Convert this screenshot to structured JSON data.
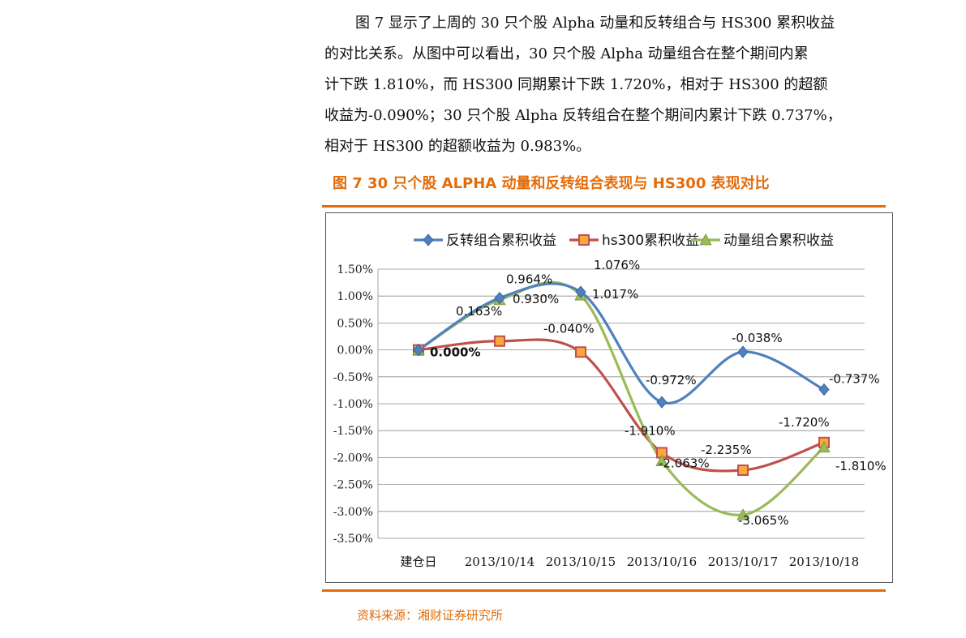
{
  "paragraph": {
    "lines": [
      "图 7 显示了上周的 30 只个股 Alpha 动量和反转组合与 HS300 累积收益",
      "的对比关系。从图中可以看出，30 只个股 Alpha 动量组合在整个期间内累",
      "计下跌 1.810%，而 HS300 同期累计下跌 1.720%，相对于 HS300 的超额",
      "收益为-0.090%；30 只个股 Alpha 反转组合在整个期间内累计下跌 0.737%，",
      "相对于 HS300 的超额收益为 0.983%。"
    ]
  },
  "figure_caption": "图 7    30 只个股 ALPHA 动量和反转组合表现与 HS300 表现对比",
  "source": {
    "label": "资料来源：",
    "text": "湘财证券研究所"
  },
  "chart_data": {
    "type": "line",
    "categories": [
      "建仓日",
      "2013/10/14",
      "2013/10/15",
      "2013/10/16",
      "2013/10/17",
      "2013/10/18"
    ],
    "ylim": [
      -3.5,
      1.5
    ],
    "ytick_step": 0.5,
    "y_unit": "%",
    "grid": true,
    "legend_position": "top",
    "smooth": true,
    "series": [
      {
        "name": "反转组合累积收益",
        "color": "#4f81bd",
        "marker": "diamond",
        "values": [
          0.0,
          0.964,
          1.076,
          -0.972,
          -0.038,
          -0.737
        ],
        "labels": [
          "",
          "0.964%",
          "1.076%",
          "-0.972%",
          "-0.038%",
          "-0.737%"
        ]
      },
      {
        "name": "hs300累积收益",
        "color": "#c0504d",
        "marker": "square",
        "values": [
          0.0,
          0.163,
          -0.04,
          -1.91,
          -2.235,
          -1.72
        ],
        "labels": [
          "0.000%",
          "0.163%",
          "-0.040%",
          "-1.910%",
          "-2.235%",
          "-1.720%"
        ]
      },
      {
        "name": "动量组合累积收益",
        "color": "#9bbb59",
        "marker": "triangle",
        "values": [
          0.0,
          0.93,
          1.017,
          -2.063,
          -3.065,
          -1.81
        ],
        "labels": [
          "",
          "0.930%",
          "1.017%",
          "-2.063%",
          "-3.065%",
          "-1.810%"
        ]
      }
    ]
  }
}
